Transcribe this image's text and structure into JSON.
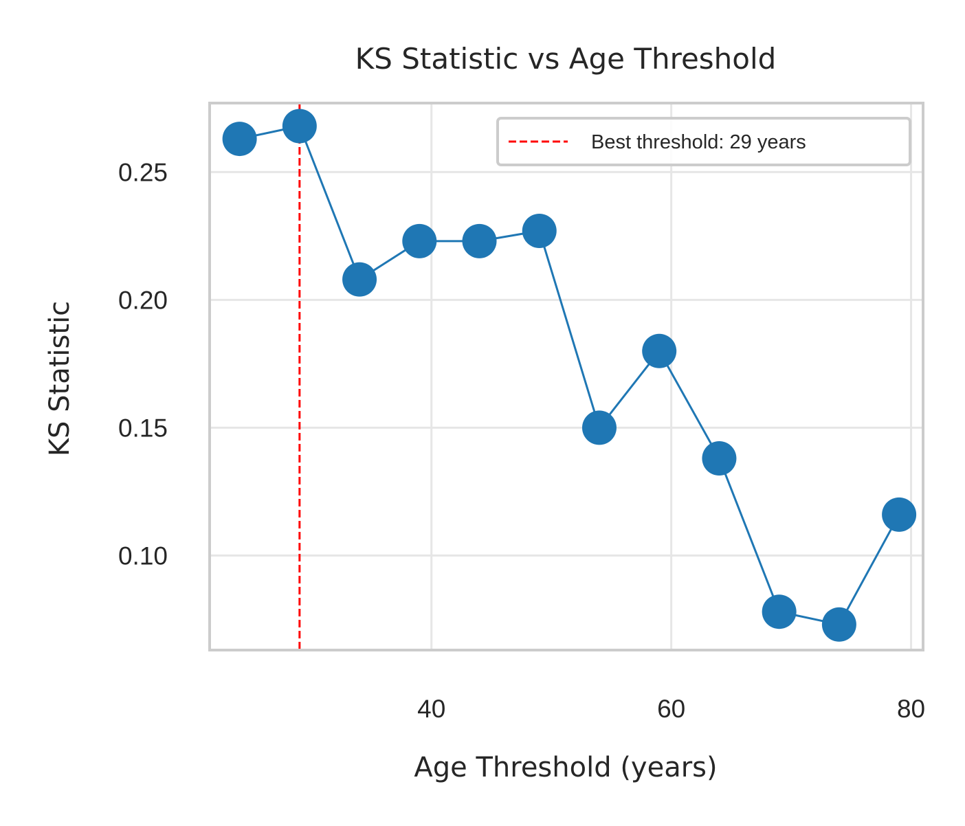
{
  "chart_data": {
    "type": "line",
    "title": "KS Statistic vs Age Threshold",
    "xlabel": "Age Threshold (years)",
    "ylabel": "KS Statistic",
    "xlim": [
      21.5,
      81
    ],
    "ylim": [
      0.063,
      0.277
    ],
    "xticks": [
      40,
      60,
      80
    ],
    "xtick_labels": [
      "40",
      "60",
      "80"
    ],
    "yticks": [
      0.1,
      0.15,
      0.2,
      0.25
    ],
    "ytick_labels": [
      "0.10",
      "0.15",
      "0.20",
      "0.25"
    ],
    "grid": true,
    "series": [
      {
        "name": "KS Statistic",
        "color": "#1f77b4",
        "marker": "circle",
        "x": [
          24,
          29,
          34,
          39,
          44,
          49,
          54,
          59,
          64,
          69,
          74,
          79
        ],
        "y": [
          0.263,
          0.268,
          0.208,
          0.223,
          0.223,
          0.227,
          0.15,
          0.18,
          0.138,
          0.078,
          0.073,
          0.116
        ]
      }
    ],
    "reference_line": {
      "orientation": "vertical",
      "x": 29,
      "color": "#ff0000",
      "style": "dashed",
      "label": "Best threshold: 29 years"
    },
    "legend": {
      "position": "top-right",
      "entries": [
        "Best threshold: 29 years"
      ]
    }
  }
}
